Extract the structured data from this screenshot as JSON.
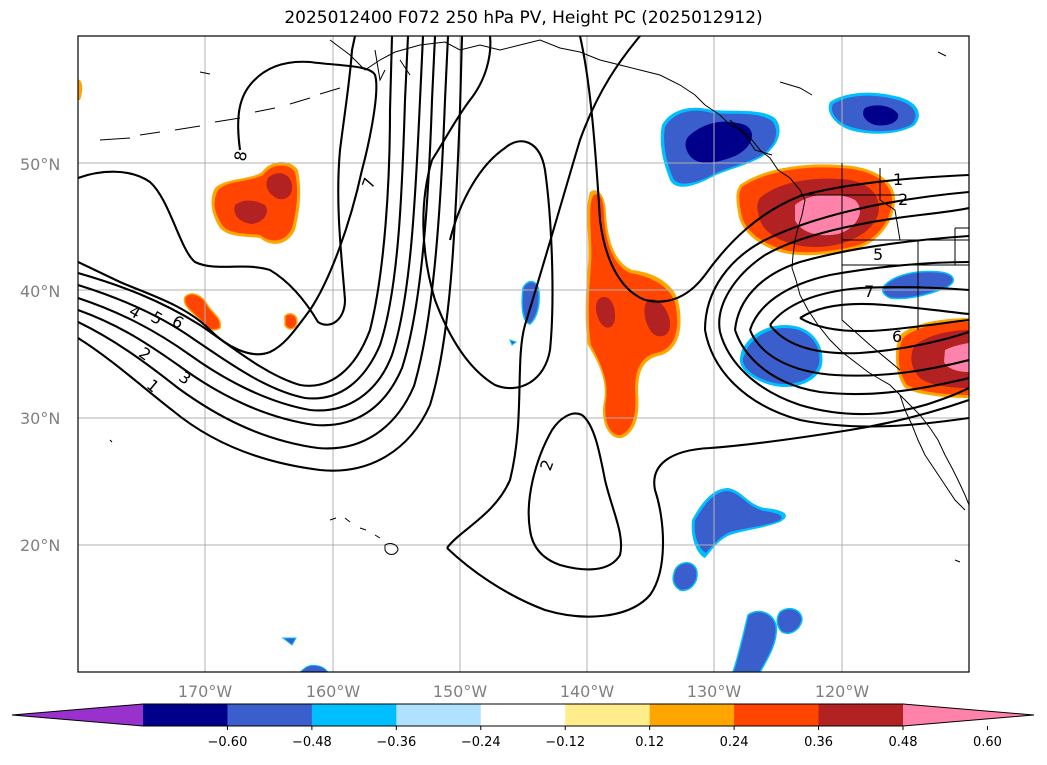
{
  "title": "2025012400 F072 250 hPa PV, Height PC (2025012912)",
  "map": {
    "projection": "plate-carree",
    "lon_range": [
      -180,
      -110
    ],
    "lat_range": [
      10,
      60
    ],
    "lat_gridlines": [
      20,
      30,
      40,
      50
    ],
    "lon_gridlines": [
      -170,
      -160,
      -150,
      -140,
      -130,
      -120
    ],
    "lat_labels": [
      "20°N",
      "30°N",
      "40°N",
      "50°N"
    ],
    "lon_labels": [
      "170°W",
      "160°W",
      "150°W",
      "140°W",
      "130°W",
      "120°W"
    ]
  },
  "contour_labels": [
    "8",
    "7",
    "4",
    "5",
    "6",
    "2",
    "3",
    "1",
    "2",
    "1",
    "2",
    "5",
    "7",
    "6"
  ],
  "colorbar": {
    "extend": "both",
    "colors": [
      "#9932cc",
      "#00008b",
      "#3a5fcd",
      "#00bfff",
      "#b0e2ff",
      "#ffffff",
      "#ffec8b",
      "#ffa500",
      "#ff4500",
      "#b22222",
      "#ff82ab"
    ],
    "tick_labels": [
      "−0.60",
      "−0.48",
      "−0.36",
      "−0.24",
      "−0.12",
      "0.12",
      "0.24",
      "0.36",
      "0.48",
      "0.60"
    ]
  }
}
